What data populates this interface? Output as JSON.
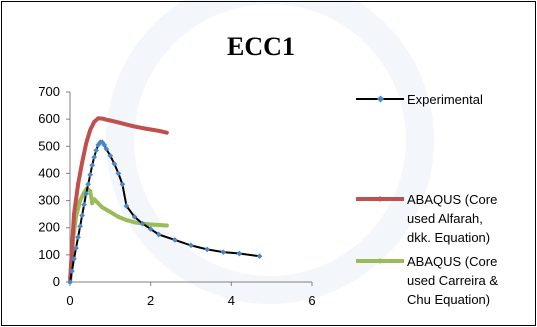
{
  "chart_data": {
    "type": "line",
    "title": "ECC1",
    "xlabel": "",
    "ylabel": "",
    "xlim": [
      0,
      6
    ],
    "ylim": [
      0,
      700
    ],
    "x_ticks": [
      "0",
      "2",
      "4",
      "6"
    ],
    "y_ticks": [
      "0",
      "100",
      "200",
      "300",
      "400",
      "500",
      "600",
      "700"
    ],
    "grid": false,
    "legend_position": "right",
    "series": [
      {
        "name": "Experimental",
        "color": "#000000",
        "marker_color": "#4a86c8",
        "legend_lines": [
          "Experimental"
        ],
        "points": [
          [
            0.0,
            0
          ],
          [
            0.05,
            40
          ],
          [
            0.1,
            85
          ],
          [
            0.15,
            125
          ],
          [
            0.2,
            165
          ],
          [
            0.25,
            205
          ],
          [
            0.3,
            245
          ],
          [
            0.35,
            285
          ],
          [
            0.4,
            325
          ],
          [
            0.45,
            360
          ],
          [
            0.5,
            395
          ],
          [
            0.55,
            430
          ],
          [
            0.6,
            460
          ],
          [
            0.65,
            485
          ],
          [
            0.7,
            505
          ],
          [
            0.75,
            515
          ],
          [
            0.8,
            515
          ],
          [
            0.85,
            505
          ],
          [
            0.9,
            490
          ],
          [
            1.0,
            465
          ],
          [
            1.1,
            435
          ],
          [
            1.2,
            400
          ],
          [
            1.3,
            360
          ],
          [
            1.4,
            280
          ],
          [
            1.6,
            240
          ],
          [
            1.8,
            215
          ],
          [
            2.0,
            195
          ],
          [
            2.2,
            175
          ],
          [
            2.6,
            155
          ],
          [
            3.0,
            135
          ],
          [
            3.4,
            120
          ],
          [
            3.8,
            110
          ],
          [
            4.2,
            105
          ],
          [
            4.7,
            95
          ]
        ]
      },
      {
        "name": "ABAQUS (Core used Alfarah, dkk.  Equation)",
        "color": "#c0504d",
        "legend_lines": [
          "ABAQUS (Core",
          "used Alfarah,",
          "dkk.  Equation)"
        ],
        "points": [
          [
            0.0,
            0
          ],
          [
            0.1,
            250
          ],
          [
            0.2,
            360
          ],
          [
            0.3,
            440
          ],
          [
            0.4,
            510
          ],
          [
            0.5,
            560
          ],
          [
            0.6,
            590
          ],
          [
            0.7,
            603
          ],
          [
            0.8,
            602
          ],
          [
            0.9,
            598
          ],
          [
            1.0,
            595
          ],
          [
            1.2,
            588
          ],
          [
            1.4,
            580
          ],
          [
            1.6,
            573
          ],
          [
            1.8,
            567
          ],
          [
            2.0,
            562
          ],
          [
            2.2,
            557
          ],
          [
            2.4,
            550
          ]
        ]
      },
      {
        "name": "ABAQUS (Core used Carreira & Chu Equation)",
        "color": "#9bbb59",
        "legend_lines": [
          "ABAQUS (Core",
          "used Carreira &",
          "Chu Equation)"
        ],
        "points": [
          [
            0.0,
            0
          ],
          [
            0.08,
            160
          ],
          [
            0.15,
            240
          ],
          [
            0.25,
            300
          ],
          [
            0.35,
            330
          ],
          [
            0.42,
            345
          ],
          [
            0.5,
            335
          ],
          [
            0.55,
            290
          ],
          [
            0.6,
            305
          ],
          [
            0.7,
            290
          ],
          [
            0.8,
            275
          ],
          [
            1.0,
            258
          ],
          [
            1.2,
            240
          ],
          [
            1.4,
            228
          ],
          [
            1.6,
            220
          ],
          [
            1.8,
            215
          ],
          [
            2.0,
            212
          ],
          [
            2.2,
            210
          ],
          [
            2.4,
            208
          ]
        ]
      }
    ]
  }
}
